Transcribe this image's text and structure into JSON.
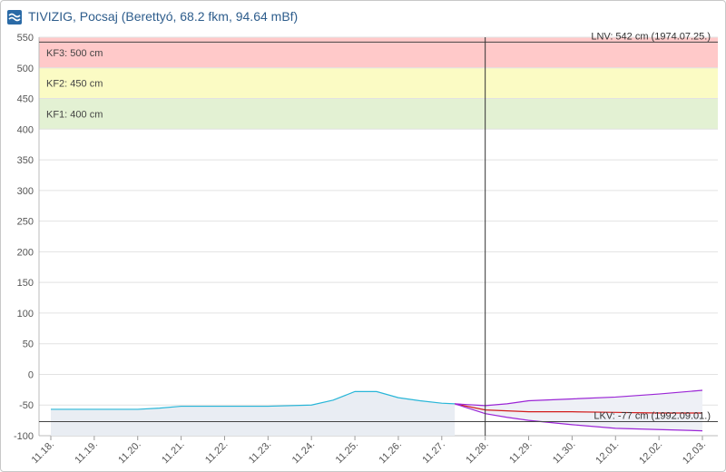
{
  "header": {
    "title": "TIVIZIG, Pocsaj (Berettyó, 68.2 fkm, 94.64 mBf)"
  },
  "colors": {
    "observed": "#29b6d8",
    "forecast_mid": "#d21b1b",
    "forecast_band": "#9b26d6",
    "kf3": "#ffc9c9",
    "kf2": "#fbfbc4",
    "kf1": "#e3f1d3",
    "title": "#2e5d8c"
  },
  "chart_data": {
    "type": "line",
    "title": "",
    "xlabel": "",
    "ylabel": "",
    "ylim": [
      -100,
      550
    ],
    "yticks": [
      "550",
      "500",
      "450",
      "400",
      "350",
      "300",
      "250",
      "200",
      "150",
      "100",
      "50",
      "0",
      "-50",
      "-100"
    ],
    "xticks": [
      "11.18.",
      "11.19.",
      "11.20.",
      "11.21.",
      "11.22.",
      "11.23.",
      "11.24.",
      "11.25.",
      "11.26.",
      "11.27.",
      "11.28.",
      "11.29.",
      "11.30.",
      "12.01.",
      "12.02.",
      "12.03."
    ],
    "grid": true,
    "bands": [
      {
        "label": "KF3: 500 cm",
        "from": 500,
        "to": 550,
        "color": "#ffc9c9"
      },
      {
        "label": "KF2: 450 cm",
        "from": 450,
        "to": 500,
        "color": "#fbfbc4"
      },
      {
        "label": "KF1: 400 cm",
        "from": 400,
        "to": 450,
        "color": "#e3f1d3"
      }
    ],
    "reference_lines": [
      {
        "label": "LNV: 542 cm (1974.07.25.)",
        "value": 542
      },
      {
        "label": "LKV: -77 cm (1992.09.01.)",
        "value": -77
      }
    ],
    "now_index": 10,
    "series": [
      {
        "role": "observed",
        "points": [
          [
            0,
            -57
          ],
          [
            1,
            -57
          ],
          [
            2,
            -57
          ],
          [
            2.5,
            -55
          ],
          [
            3,
            -52
          ],
          [
            4,
            -52
          ],
          [
            5,
            -52
          ],
          [
            6,
            -50
          ],
          [
            6.5,
            -42
          ],
          [
            7,
            -28
          ],
          [
            7.5,
            -28
          ],
          [
            8,
            -38
          ],
          [
            8.5,
            -43
          ],
          [
            9,
            -47
          ],
          [
            9.3,
            -48
          ]
        ]
      },
      {
        "role": "forecast",
        "points": [
          [
            9.3,
            -48
          ],
          [
            10,
            -58
          ],
          [
            11,
            -61
          ],
          [
            12,
            -61
          ],
          [
            13,
            -62
          ],
          [
            14,
            -63
          ],
          [
            15,
            -63
          ]
        ]
      },
      {
        "role": "forecast-upper",
        "points": [
          [
            9.3,
            -48
          ],
          [
            10,
            -51
          ],
          [
            10.5,
            -48
          ],
          [
            11,
            -43
          ],
          [
            12,
            -40
          ],
          [
            13,
            -37
          ],
          [
            14,
            -32
          ],
          [
            15,
            -26
          ]
        ]
      },
      {
        "role": "forecast-lower",
        "points": [
          [
            9.3,
            -48
          ],
          [
            10,
            -64
          ],
          [
            10.5,
            -70
          ],
          [
            11,
            -75
          ],
          [
            12,
            -82
          ],
          [
            13,
            -88
          ],
          [
            14,
            -90
          ],
          [
            15,
            -92
          ]
        ]
      }
    ]
  }
}
